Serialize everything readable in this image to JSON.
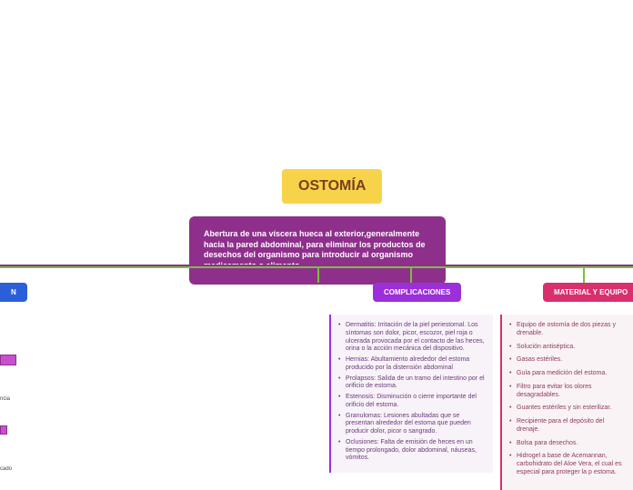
{
  "title": "OSTOMÍA",
  "definition": "Abertura de una víscera hueca al exterior,generalmente hacia la pared abdominal, para eliminar los productos de desechos del organismo para introducir al organismo medicamento o alimento",
  "nodes": {
    "left": "N",
    "complicaciones": "COMPLICACIONES",
    "material": "MATERIAL Y EQUIPO"
  },
  "complicaciones_items": [
    "Dermatitis: Irritación de la piel periestomal. Los síntomas son dolor, picor, escozor, piel roja o ulcerada provocada por el contacto de las heces, orina o la acción mecánica del dispositivo.",
    "Hernias: Abultamiento alrededor del estoma producido por la distensión abdominal",
    "Prolapsos: Salida de un tramo del intestino por el orificio de estoma.",
    "Estenosis: Disminución o cierre importante del orificio del estoma.",
    "Granulomas: Lesiones abultadas que se presentan alrededor del estoma que pueden producir dolor, picor o sangrado.",
    "Oclusiones: Falta de emisión de heces en un tiempo prolongado, dolor abdominal, náuseas, vómitos."
  ],
  "material_items": [
    "Equipo de ostomía de dos piezas y drenable.",
    "Solución antiséptica.",
    "Gasas estériles.",
    "Guía para medición del estoma.",
    "Filtro para evitar los olores desagradables.",
    "Guantes estériles y sin esterilizar.",
    "Recipiente para el depósito del drenaje.",
    "Bolsa para desechos.",
    "Hidrogel a base de Acemannan, carbohidrato del Aloe Vera, el cual es especial para proteger la p estoma."
  ],
  "left_frags": {
    "a": "ncia",
    "b": "cado"
  },
  "colors": {
    "title_bg": "#f7d349",
    "title_fg": "#7b3f1e",
    "def_bg": "#8e2f8c",
    "line_purple": "#8e2f8c",
    "line_green": "#7bbf3f",
    "node_left": "#2b5fd9",
    "node_comp": "#9b2fd9",
    "node_mat": "#d92f6f"
  }
}
